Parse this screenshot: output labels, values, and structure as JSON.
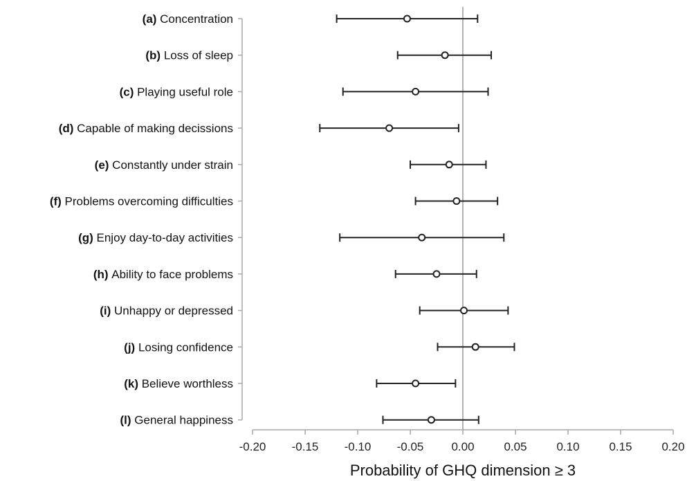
{
  "chart_data": {
    "type": "scatter",
    "xlabel": "Probability of GHQ dimension ≥ 3",
    "xlim": [
      -0.2,
      0.2
    ],
    "xticks": [
      "-0.20",
      "-0.15",
      "-0.10",
      "-0.05",
      "0.00",
      "0.05",
      "0.10",
      "0.15",
      "0.20"
    ],
    "grid": false,
    "reference_line": 0,
    "categories": [
      {
        "letter": "(a)",
        "text": "Concentration"
      },
      {
        "letter": "(b)",
        "text": "Loss of sleep"
      },
      {
        "letter": "(c)",
        "text": "Playing useful role"
      },
      {
        "letter": "(d)",
        "text": "Capable of making decissions"
      },
      {
        "letter": "(e)",
        "text": "Constantly under strain"
      },
      {
        "letter": "(f)",
        "text": "Problems overcoming difficulties"
      },
      {
        "letter": "(g)",
        "text": "Enjoy day-to-day activities"
      },
      {
        "letter": "(h)",
        "text": "Ability to face problems"
      },
      {
        "letter": "(i)",
        "text": "Unhappy or depressed"
      },
      {
        "letter": "(j)",
        "text": "Losing confidence"
      },
      {
        "letter": "(k)",
        "text": "Believe worthless"
      },
      {
        "letter": "(l)",
        "text": "General happiness"
      }
    ],
    "estimates": [
      -0.053,
      -0.017,
      -0.045,
      -0.07,
      -0.013,
      -0.006,
      -0.039,
      -0.025,
      0.001,
      0.012,
      -0.045,
      -0.03
    ],
    "ci_lower": [
      -0.12,
      -0.062,
      -0.114,
      -0.136,
      -0.05,
      -0.045,
      -0.117,
      -0.064,
      -0.041,
      -0.024,
      -0.082,
      -0.076
    ],
    "ci_upper": [
      0.014,
      0.027,
      0.024,
      -0.004,
      0.022,
      0.033,
      0.039,
      0.013,
      0.043,
      0.049,
      -0.007,
      0.015
    ],
    "colors": {
      "marker": "#222222",
      "axis": "#a9a9a9",
      "reference": "#9a9a9a"
    }
  }
}
